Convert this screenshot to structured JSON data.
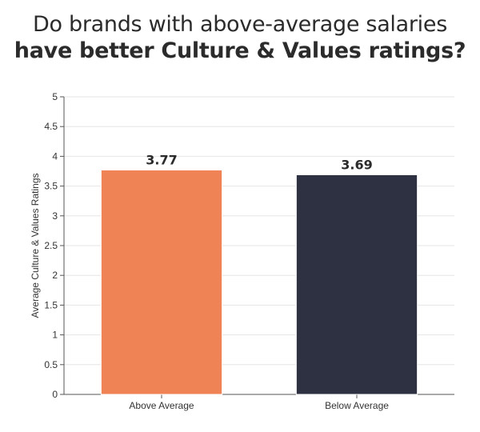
{
  "chart_data": {
    "type": "bar",
    "title_line1": "Do brands with above-average salaries",
    "title_line2": "have better Culture & Values ratings?",
    "ylabel": "Average Culture & Values Ratings",
    "xlabel": "",
    "ylim": [
      0,
      5
    ],
    "yticks": [
      "0",
      "0.5",
      "1",
      "1.5",
      "2",
      "2.5",
      "3",
      "3.5",
      "4",
      "4.5",
      "5"
    ],
    "categories": [
      "Above Average",
      "Below Average"
    ],
    "values": [
      3.77,
      3.69
    ],
    "data_labels": [
      "3.77",
      "3.69"
    ],
    "colors": [
      "#F08355",
      "#2D3142"
    ],
    "grid": true,
    "legend": "none"
  }
}
